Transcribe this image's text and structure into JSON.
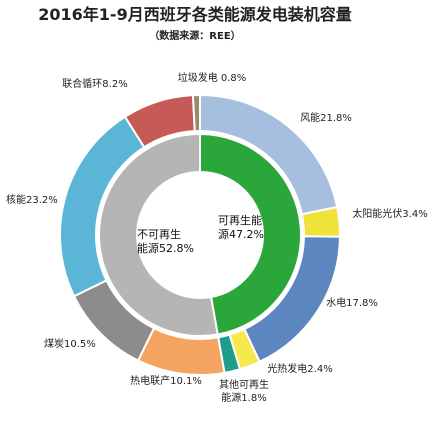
{
  "chart_data": {
    "type": "pie",
    "title": "2016年1-9月西班牙各类能源发电装机容量",
    "subtitle": "（数据来源：REE）",
    "outer_ring": [
      {
        "label": "风能21.8%",
        "value": 21.8,
        "color": "#a6bfde"
      },
      {
        "label": "太阳能光伏3.4%",
        "value": 3.4,
        "color": "#f1e23a"
      },
      {
        "label": "水电17.8%",
        "value": 17.8,
        "color": "#5b86c0"
      },
      {
        "label": "光热发电2.4%",
        "value": 2.4,
        "color": "#f6e94c"
      },
      {
        "label": [
          "其他可再生",
          "能源1.8%"
        ],
        "value": 1.8,
        "color": "#1f9c8a"
      },
      {
        "label": "热电联产10.1%",
        "value": 10.1,
        "color": "#f4a460"
      },
      {
        "label": "煤炭10.5%",
        "value": 10.5,
        "color": "#8c8c8c"
      },
      {
        "label": "核能23.2%",
        "value": 23.2,
        "color": "#5bb5d6"
      },
      {
        "label": "联合循环8.2%",
        "value": 8.2,
        "color": "#c65a57"
      },
      {
        "label": "垃圾发电 0.8%",
        "value": 0.8,
        "color": "#9a8a6a"
      }
    ],
    "inner_ring": [
      {
        "label": [
          "可再生能",
          "源47.2%"
        ],
        "value": 47.2,
        "color": "#2aa63b"
      },
      {
        "label": [
          "不可再生",
          "能源52.8%"
        ],
        "value": 52.8,
        "color": "#b5b5b5"
      }
    ]
  }
}
